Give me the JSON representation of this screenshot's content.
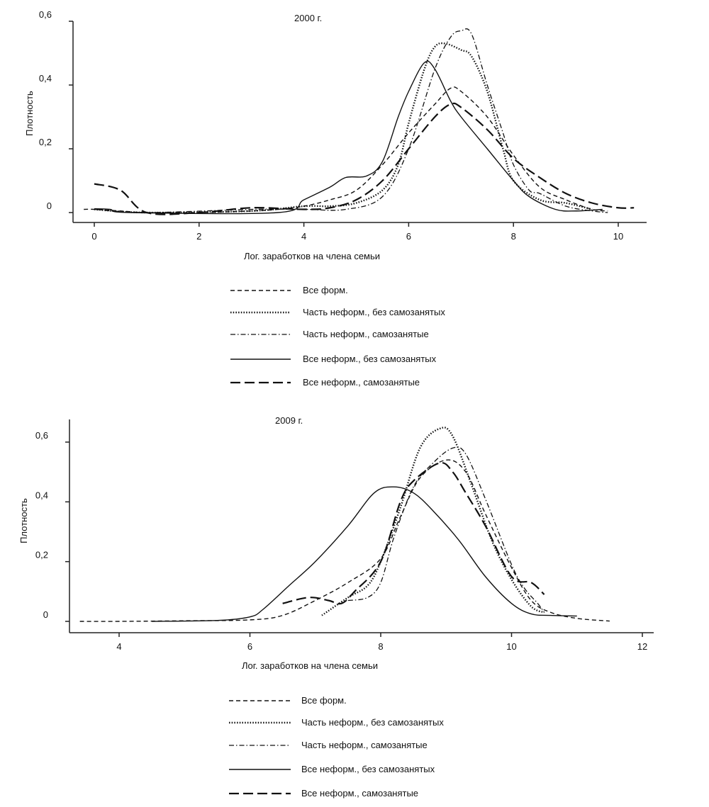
{
  "chart_data": [
    {
      "type": "line",
      "title": "2000 г.",
      "xlabel": "Лог. заработков на члена семьи",
      "ylabel": "Плотность",
      "xlim": [
        -0.4,
        10.8
      ],
      "ylim": [
        -0.03,
        0.6
      ],
      "xticks": [
        0,
        2,
        4,
        6,
        8,
        10
      ],
      "xtick_labels": [
        "0",
        "2",
        "4",
        "6",
        "8",
        "10"
      ],
      "yticks": [
        0,
        0.2,
        0.4,
        0.6
      ],
      "ytick_labels": [
        "0",
        "0,2",
        "0,4",
        "0,6"
      ],
      "legend_position": "below",
      "series": [
        {
          "name": "Все форм.",
          "style": "short-dash",
          "x": [
            -0.2,
            0,
            0.5,
            1,
            2,
            3,
            3.5,
            4,
            4.5,
            5,
            5.5,
            6,
            6.5,
            6.8,
            7,
            7.5,
            8,
            8.5,
            9,
            9.5,
            9.8
          ],
          "y": [
            0.01,
            0.01,
            0.005,
            0,
            0,
            0.005,
            0.01,
            0.02,
            0.04,
            0.07,
            0.15,
            0.25,
            0.34,
            0.39,
            0.38,
            0.3,
            0.18,
            0.08,
            0.04,
            0.01,
            0.005
          ]
        },
        {
          "name": "Часть неформ., без самозанятых",
          "style": "dotted",
          "x": [
            0,
            1,
            3,
            4,
            4.5,
            5,
            5.5,
            5.8,
            6,
            6.3,
            6.5,
            6.7,
            7,
            7.2,
            7.5,
            7.8,
            8,
            8.5,
            9,
            9.5
          ],
          "y": [
            0.01,
            0,
            0.005,
            0.02,
            0.02,
            0.03,
            0.07,
            0.15,
            0.28,
            0.45,
            0.52,
            0.53,
            0.51,
            0.49,
            0.38,
            0.2,
            0.1,
            0.04,
            0.03,
            0.01
          ]
        },
        {
          "name": "Часть неформ., самозанятые",
          "style": "dash-dot",
          "x": [
            0,
            1,
            3,
            4,
            4.8,
            5.5,
            6,
            6.5,
            6.8,
            7,
            7.2,
            7.5,
            7.8,
            8,
            8.3,
            8.5,
            9,
            9.5,
            9.8
          ],
          "y": [
            0.01,
            0,
            0.01,
            0.01,
            0.01,
            0.05,
            0.2,
            0.45,
            0.55,
            0.57,
            0.56,
            0.4,
            0.25,
            0.15,
            0.07,
            0.06,
            0.02,
            0.005,
            0
          ]
        },
        {
          "name": "Все неформ., без самозанятых",
          "style": "solid",
          "x": [
            0,
            0.3,
            0.7,
            3.5,
            4,
            4.5,
            4.8,
            5.2,
            5.5,
            5.8,
            6,
            6.3,
            6.5,
            6.8,
            7,
            7.5,
            8,
            8.3,
            8.8,
            9.2,
            9.7
          ],
          "y": [
            0.012,
            0.01,
            0,
            0,
            0.04,
            0.08,
            0.11,
            0.115,
            0.16,
            0.3,
            0.38,
            0.47,
            0.45,
            0.35,
            0.3,
            0.2,
            0.1,
            0.05,
            0.01,
            0.005,
            0.01
          ]
        },
        {
          "name": "Все неформ., самозанятые",
          "style": "long-dash",
          "x": [
            0,
            0.5,
            1,
            2,
            3,
            4,
            4.5,
            5,
            5.5,
            6,
            6.5,
            6.8,
            7,
            7.5,
            8,
            8.5,
            9,
            9.5,
            10,
            10.3
          ],
          "y": [
            0.09,
            0.07,
            0,
            0,
            0.015,
            0.01,
            0.015,
            0.04,
            0.1,
            0.2,
            0.3,
            0.34,
            0.33,
            0.26,
            0.17,
            0.11,
            0.06,
            0.03,
            0.015,
            0.015
          ]
        }
      ]
    },
    {
      "type": "line",
      "title": "2009 г.",
      "xlabel": "Лог. заработков на члена семьи",
      "ylabel": "Плотность",
      "xlim": [
        3.3,
        12.2
      ],
      "ylim": [
        -0.04,
        0.63
      ],
      "xticks": [
        4,
        6,
        8,
        10,
        12
      ],
      "xtick_labels": [
        "4",
        "6",
        "8",
        "10",
        "12"
      ],
      "yticks": [
        0,
        0.2,
        0.4,
        0.6
      ],
      "ytick_labels": [
        "0",
        "0,2",
        "0,4",
        "0,6"
      ],
      "legend_position": "below",
      "series": [
        {
          "name": "Все форм.",
          "style": "short-dash",
          "x": [
            3.4,
            4,
            5,
            6,
            6.5,
            7,
            7.5,
            8,
            8.3,
            8.6,
            9,
            9.3,
            9.6,
            10,
            10.3,
            10.6,
            11,
            11.5
          ],
          "y": [
            0,
            0,
            0.002,
            0.005,
            0.02,
            0.07,
            0.13,
            0.21,
            0.35,
            0.48,
            0.54,
            0.5,
            0.36,
            0.18,
            0.07,
            0.03,
            0.01,
            0.001
          ]
        },
        {
          "name": "Часть неформ., без самозанятых",
          "style": "dotted",
          "x": [
            7.1,
            7.5,
            7.8,
            8,
            8.3,
            8.6,
            8.9,
            9.1,
            9.4,
            9.7,
            10,
            10.3,
            10.5
          ],
          "y": [
            0.02,
            0.08,
            0.12,
            0.2,
            0.38,
            0.58,
            0.645,
            0.62,
            0.45,
            0.27,
            0.14,
            0.05,
            0.03
          ]
        },
        {
          "name": "Часть неформ., самозанятые",
          "style": "dash-dot",
          "x": [
            7.5,
            7.8,
            8,
            8.2,
            8.5,
            8.8,
            9.1,
            9.3,
            9.6,
            10,
            10.2,
            10.4,
            10.5
          ],
          "y": [
            0.07,
            0.08,
            0.13,
            0.28,
            0.45,
            0.53,
            0.58,
            0.56,
            0.41,
            0.19,
            0.11,
            0.06,
            0.03
          ]
        },
        {
          "name": "Все неформ., без самозанятых",
          "style": "solid",
          "x": [
            4.5,
            5.5,
            6,
            6.2,
            6.6,
            7,
            7.5,
            7.9,
            8.2,
            8.5,
            8.8,
            9.2,
            9.6,
            10,
            10.3,
            10.6,
            11
          ],
          "y": [
            0,
            0.003,
            0.015,
            0.04,
            0.12,
            0.2,
            0.32,
            0.43,
            0.45,
            0.43,
            0.37,
            0.27,
            0.15,
            0.06,
            0.025,
            0.02,
            0.018
          ]
        },
        {
          "name": "Все неформ., самозанятые",
          "style": "long-dash",
          "x": [
            6.5,
            6.9,
            7.2,
            7.4,
            7.6,
            8,
            8.3,
            8.5,
            8.9,
            9.1,
            9.3,
            9.6,
            10,
            10.3,
            10.5
          ],
          "y": [
            0.06,
            0.08,
            0.07,
            0.06,
            0.1,
            0.2,
            0.4,
            0.47,
            0.53,
            0.5,
            0.43,
            0.32,
            0.15,
            0.13,
            0.09
          ]
        }
      ]
    }
  ]
}
